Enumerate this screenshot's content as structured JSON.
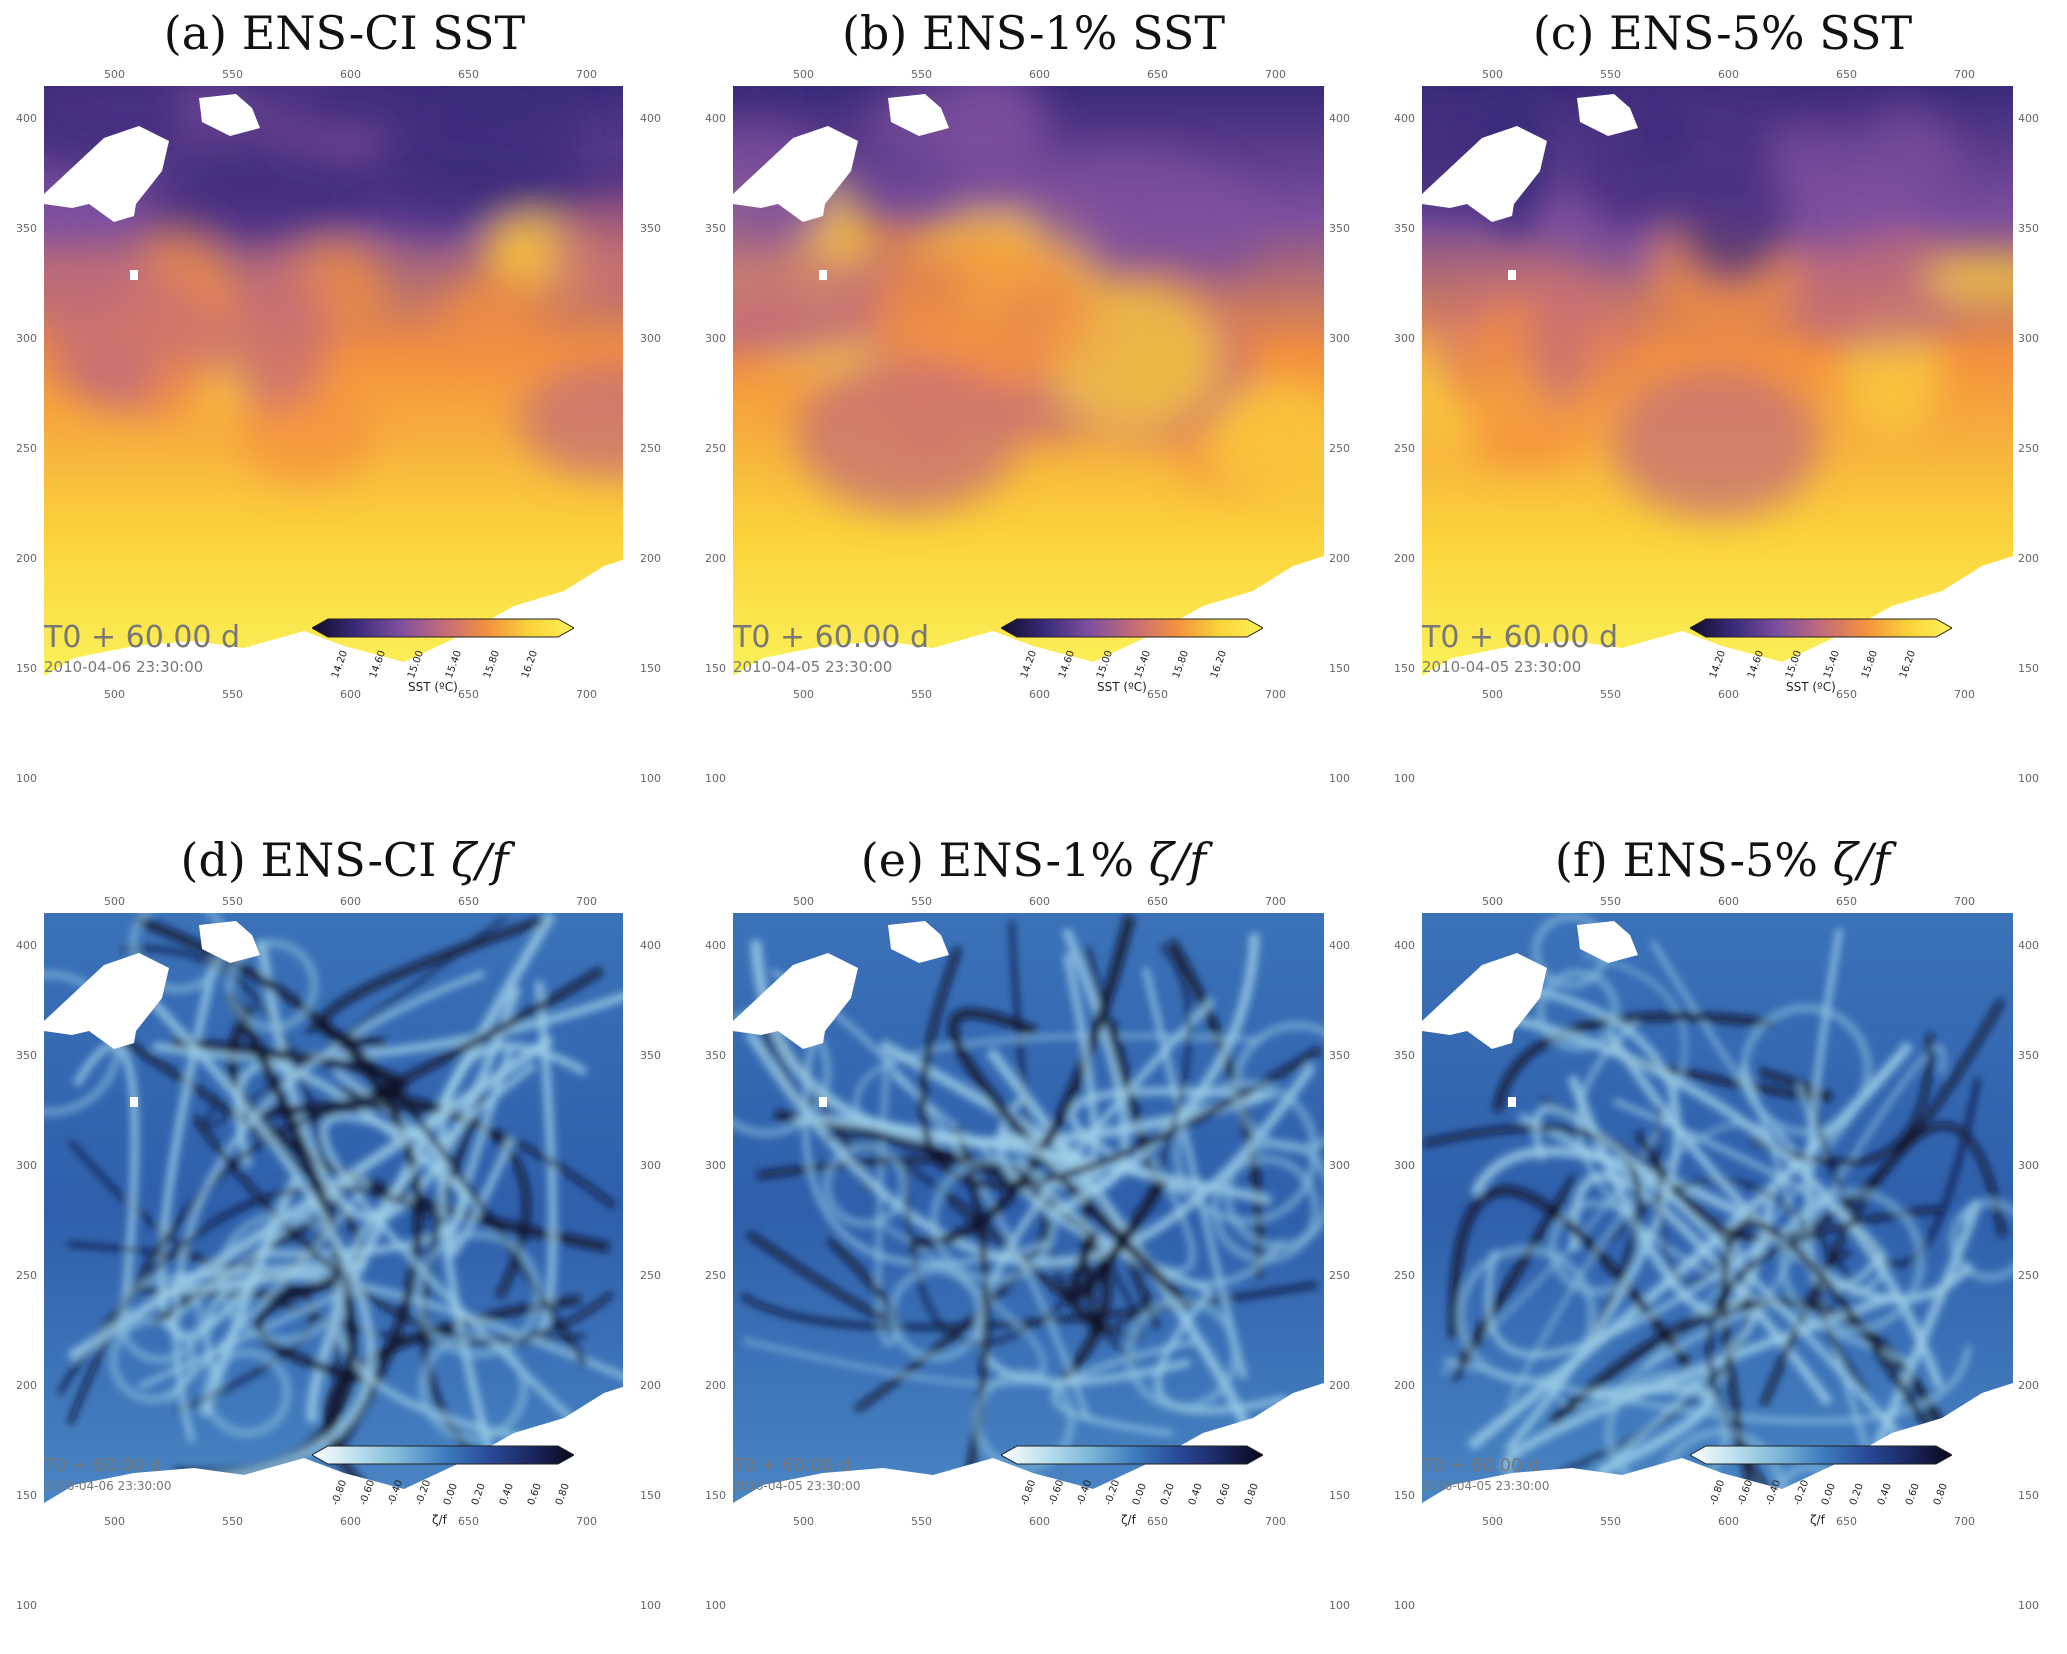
{
  "panels": [
    {
      "title_prefix": "(a) ENS-CI",
      "title_suffix": "SST",
      "kind": "sst",
      "time_label": "T0 + 60.00 d",
      "date_label": "2010-04-06 23:30:00"
    },
    {
      "title_prefix": "(b) ENS-1%",
      "title_suffix": "SST",
      "kind": "sst",
      "time_label": "T0 + 60.00 d",
      "date_label": "2010-04-05 23:30:00"
    },
    {
      "title_prefix": "(c) ENS-5%",
      "title_suffix": "SST",
      "kind": "sst",
      "time_label": "T0 + 60.00 d",
      "date_label": "2010-04-05 23:30:00"
    },
    {
      "title_prefix": "(d) ENS-CI",
      "title_suffix": "ζ/f",
      "kind": "vort",
      "time_label": "T0 + 60.00 d",
      "date_label": "2010-04-06 23:30:00"
    },
    {
      "title_prefix": "(e) ENS-1%",
      "title_suffix": "ζ/f",
      "kind": "vort",
      "time_label": "T0 + 60.00 d",
      "date_label": "2010-04-05 23:30:00"
    },
    {
      "title_prefix": "(f) ENS-5%",
      "title_suffix": "ζ/f",
      "kind": "vort",
      "time_label": "T0 + 60.00 d",
      "date_label": "2010-04-05 23:30:00"
    }
  ],
  "axes": {
    "x_ticks": [
      "500",
      "550",
      "600",
      "650",
      "700"
    ],
    "y_ticks": [
      "400",
      "350",
      "300",
      "250",
      "200",
      "150",
      "100"
    ]
  },
  "colorbars": {
    "sst": {
      "label": "SST (ºC)",
      "ticks": [
        "14.20",
        "14.60",
        "15.00",
        "15.40",
        "15.80",
        "16.20"
      ],
      "colors": [
        "#120c2a",
        "#3b2a7a",
        "#7d4f9e",
        "#c26b7a",
        "#f3903f",
        "#fbd23a",
        "#fbf35a"
      ]
    },
    "vort": {
      "label": "ζ/f",
      "ticks": [
        "-0.80",
        "-0.60",
        "-0.40",
        "-0.20",
        "0.00",
        "0.20",
        "0.40",
        "0.60",
        "0.80"
      ],
      "colors": [
        "#ffffff",
        "#bde0ee",
        "#7fb8d8",
        "#3f7fc0",
        "#2a4d9a",
        "#1b2863",
        "#08081a"
      ]
    }
  }
}
